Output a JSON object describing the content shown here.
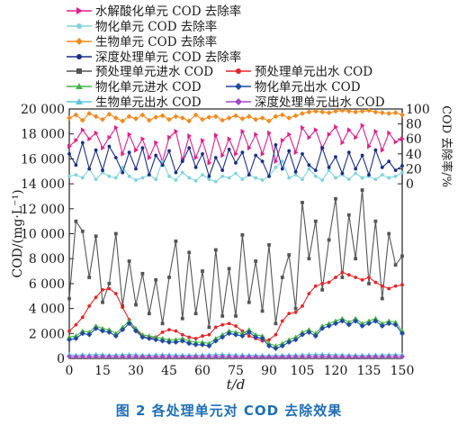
{
  "caption": "图 2 各处理单元对 COD 去除效果",
  "chart_data": {
    "type": "line",
    "xlabel": "t/d",
    "xlim": [
      0,
      150
    ],
    "xticks": [
      0,
      15,
      30,
      45,
      60,
      75,
      90,
      105,
      120,
      135,
      150
    ],
    "left_axis": {
      "label": "COD/(mg·L⁻¹)",
      "ylim": [
        0,
        20000
      ],
      "ticks": [
        0,
        2000,
        4000,
        6000,
        8000,
        10000,
        12000,
        14000,
        16000,
        18000,
        20000
      ],
      "tick_labels": [
        "0",
        "2 000",
        "4 000",
        "6 000",
        "8 000",
        "10 000",
        "12 000",
        "14 000",
        "16 000",
        "18 000",
        "20 000"
      ]
    },
    "right_axis": {
      "label": "COD 去除率/%",
      "ylim": [
        0,
        100
      ],
      "ticks": [
        0,
        20,
        40,
        60,
        80,
        100
      ],
      "tick_labels": [
        "0",
        "20",
        "40",
        "60",
        "80",
        "100"
      ],
      "note": "Right axis maps to upper panel of chart (left-axis 14 000 – 20 000)"
    },
    "legend": [
      {
        "label": "水解酸化单元 COD 去除率",
        "color": "#e0208a",
        "marker": "triangle-right"
      },
      {
        "label": "物化单元 COD 去除率",
        "color": "#7fd3dc",
        "marker": "circle"
      },
      {
        "label": "生物单元 COD 去除率",
        "color": "#f28a1e",
        "marker": "diamond"
      },
      {
        "label": "深度处理单元 COD 去除率",
        "color": "#1a2f86",
        "marker": "circle"
      },
      {
        "label": "预处理单元进水 COD",
        "color": "#555555",
        "marker": "square"
      },
      {
        "label": "预处理单元出水 COD",
        "color": "#e3262b",
        "marker": "circle"
      },
      {
        "label": "物化单元进水 COD",
        "color": "#46b24a",
        "marker": "triangle"
      },
      {
        "label": "物化单元出水 COD",
        "color": "#1f4aa0",
        "marker": "diamond"
      },
      {
        "label": "生物单元出水 COD",
        "color": "#5bc6d8",
        "marker": "triangle"
      },
      {
        "label": "深度处理单元出水 COD",
        "color": "#a24ac6",
        "marker": "diamond"
      }
    ],
    "x": [
      0,
      3,
      6,
      9,
      12,
      15,
      18,
      21,
      24,
      27,
      30,
      33,
      36,
      39,
      42,
      45,
      48,
      51,
      54,
      57,
      60,
      63,
      66,
      69,
      72,
      75,
      78,
      81,
      84,
      87,
      90,
      93,
      96,
      99,
      102,
      105,
      108,
      111,
      114,
      117,
      120,
      123,
      126,
      129,
      132,
      135,
      138,
      141,
      144,
      147,
      150
    ],
    "series": [
      {
        "name": "预处理单元进水 COD",
        "axis": "left",
        "values": [
          4800,
          11000,
          10200,
          6500,
          9800,
          4500,
          6000,
          10000,
          4200,
          7800,
          4300,
          6800,
          3600,
          6300,
          2800,
          6500,
          9400,
          3200,
          8500,
          3600,
          7000,
          2500,
          8700,
          3400,
          7200,
          3400,
          9900,
          4500,
          7800,
          3800,
          9100,
          2800,
          6500,
          8300,
          4000,
          12500,
          8000,
          11000,
          5500,
          9500,
          12800,
          6500,
          11500,
          8000,
          13500,
          6000,
          11000,
          4800,
          10000,
          7500,
          8200
        ]
      },
      {
        "name": "预处理单元出水 COD",
        "axis": "left",
        "values": [
          2200,
          2700,
          3300,
          4200,
          4900,
          5500,
          5600,
          5200,
          4100,
          3100,
          2300,
          1800,
          1600,
          1700,
          2100,
          2300,
          2200,
          1900,
          1700,
          1600,
          1800,
          1900,
          2500,
          2700,
          2800,
          2600,
          2200,
          1800,
          1600,
          1400,
          1500,
          1900,
          3000,
          3600,
          3700,
          4200,
          5200,
          5800,
          6000,
          6100,
          6500,
          6900,
          6700,
          6500,
          6300,
          6500,
          6100,
          5800,
          5600,
          5800,
          5900
        ]
      },
      {
        "name": "物化单元进水 COD",
        "axis": "left",
        "values": [
          1700,
          1800,
          2200,
          2100,
          2600,
          2400,
          2300,
          2000,
          2500,
          3000,
          2400,
          1900,
          1800,
          1700,
          1600,
          1500,
          1500,
          1600,
          1400,
          1300,
          1300,
          1200,
          1600,
          1900,
          2200,
          2100,
          2000,
          2300,
          1900,
          1800,
          1200,
          1000,
          1200,
          1500,
          1700,
          2100,
          2300,
          2000,
          2600,
          2800,
          3000,
          3200,
          2900,
          3200,
          2800,
          3000,
          3200,
          2800,
          3000,
          2900,
          2200
        ]
      },
      {
        "name": "物化单元出水 COD",
        "axis": "left",
        "values": [
          1500,
          1600,
          2000,
          1900,
          2400,
          2200,
          2100,
          1800,
          2300,
          2800,
          2200,
          1700,
          1600,
          1500,
          1400,
          1300,
          1300,
          1400,
          1200,
          1100,
          1100,
          1000,
          1400,
          1700,
          2000,
          1900,
          1800,
          2100,
          1700,
          1600,
          1000,
          800,
          1000,
          1300,
          1500,
          1900,
          2100,
          1800,
          2400,
          2600,
          2800,
          3000,
          2700,
          3000,
          2600,
          2800,
          3000,
          2600,
          2800,
          2700,
          2000
        ]
      },
      {
        "name": "生物单元出水 COD",
        "axis": "left",
        "values": [
          300,
          250,
          300,
          280,
          320,
          300,
          260,
          280,
          300,
          310,
          290,
          270,
          260,
          280,
          300,
          290,
          270,
          260,
          250,
          270,
          280,
          290,
          300,
          310,
          290,
          280,
          270,
          260,
          250,
          240,
          230,
          240,
          250,
          260,
          270,
          280,
          300,
          310,
          320,
          300,
          290,
          280,
          270,
          260,
          250,
          260,
          270,
          280,
          290,
          300,
          280
        ]
      },
      {
        "name": "深度处理单元出水 COD",
        "axis": "left",
        "values": [
          150,
          140,
          150,
          145,
          160,
          150,
          140,
          145,
          150,
          155,
          150,
          140,
          135,
          140,
          150,
          145,
          140,
          135,
          130,
          140,
          145,
          150,
          150,
          155,
          145,
          140,
          135,
          130,
          125,
          120,
          120,
          125,
          130,
          135,
          140,
          145,
          150,
          155,
          160,
          150,
          145,
          140,
          135,
          130,
          125,
          130,
          135,
          140,
          145,
          150,
          140
        ]
      },
      {
        "name": "水解酸化单元 COD 去除率",
        "axis": "right",
        "values": [
          50,
          58,
          72,
          60,
          68,
          48,
          62,
          75,
          40,
          66,
          45,
          60,
          35,
          55,
          30,
          62,
          70,
          32,
          64,
          35,
          58,
          28,
          65,
          38,
          60,
          40,
          70,
          48,
          66,
          40,
          68,
          30,
          58,
          66,
          42,
          75,
          62,
          72,
          48,
          66,
          76,
          55,
          72,
          62,
          78,
          50,
          70,
          45,
          68,
          56,
          60
        ]
      },
      {
        "name": "物化单元 COD 去除率",
        "axis": "right",
        "values": [
          10,
          12,
          8,
          20,
          6,
          15,
          10,
          8,
          22,
          10,
          5,
          8,
          12,
          6,
          30,
          10,
          5,
          15,
          8,
          4,
          12,
          6,
          3,
          10,
          8,
          14,
          6,
          12,
          8,
          5,
          10,
          22,
          30,
          8,
          12,
          6,
          20,
          10,
          5,
          18,
          8,
          12,
          6,
          14,
          8,
          10,
          6,
          12,
          8,
          10,
          15
        ]
      },
      {
        "name": "生物单元 COD 去除率",
        "axis": "right",
        "values": [
          88,
          92,
          85,
          94,
          90,
          86,
          93,
          88,
          84,
          90,
          87,
          92,
          85,
          89,
          91,
          86,
          90,
          88,
          84,
          92,
          86,
          89,
          90,
          85,
          88,
          91,
          87,
          90,
          86,
          88,
          84,
          90,
          92,
          88,
          91,
          94,
          96,
          97,
          96,
          95,
          97,
          98,
          97,
          96,
          97,
          98,
          96,
          95,
          94,
          95,
          92
        ]
      },
      {
        "name": "深度处理单元 COD 去除率",
        "axis": "right",
        "values": [
          40,
          25,
          55,
          20,
          45,
          18,
          50,
          35,
          15,
          42,
          20,
          48,
          12,
          38,
          25,
          44,
          15,
          30,
          48,
          22,
          40,
          10,
          35,
          18,
          46,
          28,
          42,
          12,
          38,
          30,
          10,
          52,
          20,
          44,
          16,
          40,
          25,
          18,
          48,
          22,
          36,
          14,
          42,
          20,
          38,
          12,
          45,
          22,
          30,
          18,
          24
        ]
      }
    ]
  }
}
